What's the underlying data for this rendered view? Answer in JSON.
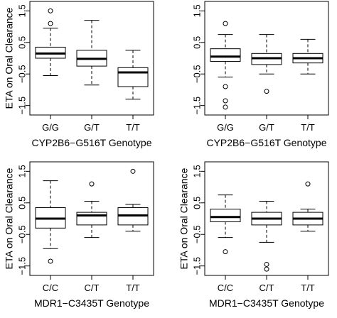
{
  "chart_data": [
    {
      "type": "boxplot",
      "xlabel": "CYP2B6−G516T Genotype",
      "ylabel": "ETA on Oral Clearance",
      "ylim": [
        -1.8,
        1.8
      ],
      "yticks": [
        1.5,
        0.5,
        -0.5,
        -1.5
      ],
      "ytick_labels": [
        "1.5",
        "0.5",
        "−0.5",
        "−1.5"
      ],
      "categories": [
        "G/G",
        "G/T",
        "T/T"
      ],
      "boxes": [
        {
          "q1": 0.0,
          "median": 0.15,
          "q3": 0.35,
          "whisker_low": -0.55,
          "whisker_high": 0.95,
          "outliers": [
            1.5,
            1.1
          ]
        },
        {
          "q1": -0.25,
          "median": -0.02,
          "q3": 0.25,
          "whisker_low": -0.85,
          "whisker_high": 1.2,
          "outliers": []
        },
        {
          "q1": -0.9,
          "median": -0.45,
          "q3": -0.3,
          "whisker_low": -1.3,
          "whisker_high": 0.25,
          "outliers": []
        }
      ]
    },
    {
      "type": "boxplot",
      "xlabel": "CYP2B6−G516T Genotype",
      "ylabel": "",
      "ylim": [
        -1.8,
        1.8
      ],
      "yticks": [
        1.5,
        0.5,
        -0.5,
        -1.5
      ],
      "ytick_labels": [
        "1.5",
        "0.5",
        "−0.5",
        "−1.5"
      ],
      "categories": [
        "G/G",
        "G/T",
        "T/T"
      ],
      "boxes": [
        {
          "q1": -0.1,
          "median": 0.05,
          "q3": 0.3,
          "whisker_low": -0.6,
          "whisker_high": 0.75,
          "outliers": [
            1.1,
            -0.9,
            -1.35,
            -1.55
          ]
        },
        {
          "q1": -0.2,
          "median": 0.0,
          "q3": 0.15,
          "whisker_low": -0.5,
          "whisker_high": 0.75,
          "outliers": [
            -1.05
          ]
        },
        {
          "q1": -0.15,
          "median": 0.0,
          "q3": 0.15,
          "whisker_low": -0.5,
          "whisker_high": 0.6,
          "outliers": []
        }
      ]
    },
    {
      "type": "boxplot",
      "xlabel": "MDR1−C3435T Genotype",
      "ylabel": "ETA on Oral Clearance",
      "ylim": [
        -1.8,
        1.8
      ],
      "yticks": [
        1.5,
        0.5,
        -0.5,
        -1.5
      ],
      "ytick_labels": [
        "1.5",
        "0.5",
        "−0.5",
        "−1.5"
      ],
      "categories": [
        "C/C",
        "C/T",
        "T/T"
      ],
      "boxes": [
        {
          "q1": -0.3,
          "median": 0.0,
          "q3": 0.35,
          "whisker_low": -0.95,
          "whisker_high": 1.2,
          "outliers": [
            -1.35
          ]
        },
        {
          "q1": -0.2,
          "median": 0.1,
          "q3": 0.2,
          "whisker_low": -0.6,
          "whisker_high": 0.55,
          "outliers": [
            1.1
          ]
        },
        {
          "q1": -0.2,
          "median": 0.1,
          "q3": 0.35,
          "whisker_low": -0.4,
          "whisker_high": 0.45,
          "outliers": [
            1.5
          ]
        }
      ]
    },
    {
      "type": "boxplot",
      "xlabel": "MDR1−C3435T Genotype",
      "ylabel": "ETA on Oral Clearance",
      "ylim": [
        -1.8,
        1.8
      ],
      "yticks": [
        1.5,
        0.5,
        -0.5,
        -1.5
      ],
      "ytick_labels": [
        "1.5",
        "0.5",
        "−0.5",
        "−1.5"
      ],
      "categories": [
        "C/C",
        "C/T",
        "T/T"
      ],
      "boxes": [
        {
          "q1": -0.1,
          "median": 0.05,
          "q3": 0.3,
          "whisker_low": -0.6,
          "whisker_high": 0.75,
          "outliers": [
            -1.05
          ]
        },
        {
          "q1": -0.2,
          "median": 0.0,
          "q3": 0.2,
          "whisker_low": -0.75,
          "whisker_high": 0.55,
          "outliers": [
            -1.45,
            -1.6
          ]
        },
        {
          "q1": -0.2,
          "median": 0.0,
          "q3": 0.2,
          "whisker_low": -0.4,
          "whisker_high": 0.3,
          "outliers": [
            1.1
          ]
        }
      ]
    }
  ]
}
